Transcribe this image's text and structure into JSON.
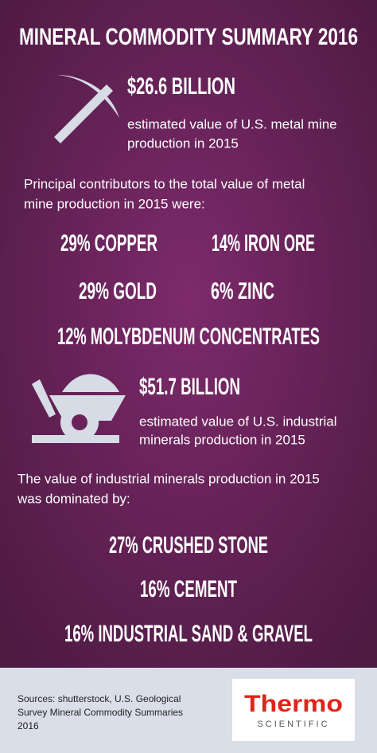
{
  "title": "MINERAL COMMODITY SUMMARY 2016",
  "metal": {
    "value": "$26.6 BILLION",
    "description": [
      "estimated value of U.S. metal mine",
      "production in 2015"
    ]
  },
  "metal_intro": [
    "Principal contributors to the total value of metal",
    "mine production in 2015 were:"
  ],
  "metal_contributors": [
    "29% COPPER",
    "14% IRON ORE",
    "29% GOLD",
    "6% ZINC",
    "12% MOLYBDENUM CONCENTRATES"
  ],
  "industrial": {
    "value": "$51.7 BILLION",
    "description": [
      "estimated value of U.S. industrial",
      "minerals production in 2015"
    ]
  },
  "industrial_intro": [
    "The value of industrial minerals production in 2015",
    "was dominated by:"
  ],
  "industrial_contributors": [
    "27% CRUSHED STONE",
    "16% CEMENT",
    "16% INDUSTRIAL SAND & GRAVEL"
  ],
  "footer": {
    "sources": [
      "Sources: shutterstock, U.S. Geological",
      "Survey Mineral Commodity Summaries",
      "2016"
    ],
    "logo": {
      "name": "Thermo",
      "subtitle": "SCIENTIFIC"
    }
  }
}
